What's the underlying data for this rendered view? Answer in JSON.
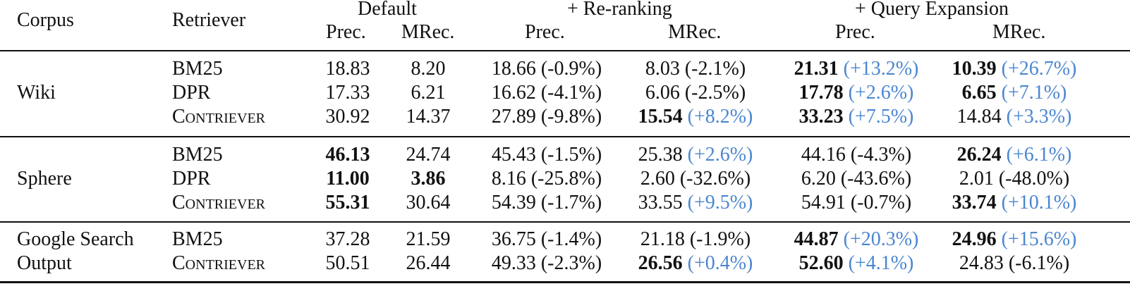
{
  "header": {
    "corpus": "Corpus",
    "retriever": "Retriever",
    "groups": [
      "Default",
      "+ Re-ranking",
      "+ Query Expansion"
    ],
    "metrics": [
      "Prec.",
      "MRec.",
      "Prec.",
      "MRec.",
      "Prec.",
      "MRec."
    ]
  },
  "sections": [
    {
      "corpus_lines": [
        "Wiki"
      ],
      "rows": [
        {
          "retriever": "BM25",
          "sc": false,
          "cells": [
            {
              "v": "18.83",
              "b": false,
              "p": ""
            },
            {
              "v": "8.20",
              "b": false,
              "p": ""
            },
            {
              "v": "18.66",
              "b": false,
              "p": "(-0.9%)",
              "up": false
            },
            {
              "v": "8.03",
              "b": false,
              "p": "(-2.1%)",
              "up": false
            },
            {
              "v": "21.31",
              "b": true,
              "p": "(+13.2%)",
              "up": true
            },
            {
              "v": "10.39",
              "b": true,
              "p": "(+26.7%)",
              "up": true
            }
          ]
        },
        {
          "retriever": "DPR",
          "sc": false,
          "cells": [
            {
              "v": "17.33",
              "b": false,
              "p": ""
            },
            {
              "v": "6.21",
              "b": false,
              "p": ""
            },
            {
              "v": "16.62",
              "b": false,
              "p": "(-4.1%)",
              "up": false
            },
            {
              "v": "6.06",
              "b": false,
              "p": "(-2.5%)",
              "up": false
            },
            {
              "v": "17.78",
              "b": true,
              "p": "(+2.6%)",
              "up": true
            },
            {
              "v": "6.65",
              "b": true,
              "p": "(+7.1%)",
              "up": true
            }
          ]
        },
        {
          "retriever": "Contriever",
          "sc": true,
          "cells": [
            {
              "v": "30.92",
              "b": false,
              "p": ""
            },
            {
              "v": "14.37",
              "b": false,
              "p": ""
            },
            {
              "v": "27.89",
              "b": false,
              "p": "(-9.8%)",
              "up": false
            },
            {
              "v": "15.54",
              "b": true,
              "p": "(+8.2%)",
              "up": true
            },
            {
              "v": "33.23",
              "b": true,
              "p": "(+7.5%)",
              "up": true
            },
            {
              "v": "14.84",
              "b": false,
              "p": "(+3.3%)",
              "up": true
            }
          ]
        }
      ]
    },
    {
      "corpus_lines": [
        "Sphere"
      ],
      "rows": [
        {
          "retriever": "BM25",
          "sc": false,
          "cells": [
            {
              "v": "46.13",
              "b": true,
              "p": ""
            },
            {
              "v": "24.74",
              "b": false,
              "p": ""
            },
            {
              "v": "45.43",
              "b": false,
              "p": "(-1.5%)",
              "up": false
            },
            {
              "v": "25.38",
              "b": false,
              "p": "(+2.6%)",
              "up": true
            },
            {
              "v": "44.16",
              "b": false,
              "p": "(-4.3%)",
              "up": false
            },
            {
              "v": "26.24",
              "b": true,
              "p": "(+6.1%)",
              "up": true
            }
          ]
        },
        {
          "retriever": "DPR",
          "sc": false,
          "cells": [
            {
              "v": "11.00",
              "b": true,
              "p": ""
            },
            {
              "v": "3.86",
              "b": true,
              "p": ""
            },
            {
              "v": "8.16",
              "b": false,
              "p": "(-25.8%)",
              "up": false
            },
            {
              "v": "2.60",
              "b": false,
              "p": "(-32.6%)",
              "up": false
            },
            {
              "v": "6.20",
              "b": false,
              "p": "(-43.6%)",
              "up": false
            },
            {
              "v": "2.01",
              "b": false,
              "p": "(-48.0%)",
              "up": false
            }
          ]
        },
        {
          "retriever": "Contriever",
          "sc": true,
          "cells": [
            {
              "v": "55.31",
              "b": true,
              "p": ""
            },
            {
              "v": "30.64",
              "b": false,
              "p": ""
            },
            {
              "v": "54.39",
              "b": false,
              "p": "(-1.7%)",
              "up": false
            },
            {
              "v": "33.55",
              "b": false,
              "p": "(+9.5%)",
              "up": true
            },
            {
              "v": "54.91",
              "b": false,
              "p": "(-0.7%)",
              "up": false
            },
            {
              "v": "33.74",
              "b": true,
              "p": "(+10.1%)",
              "up": true
            }
          ]
        }
      ]
    },
    {
      "corpus_lines": [
        "Google Search",
        "Output"
      ],
      "rows": [
        {
          "retriever": "BM25",
          "sc": false,
          "cells": [
            {
              "v": "37.28",
              "b": false,
              "p": ""
            },
            {
              "v": "21.59",
              "b": false,
              "p": ""
            },
            {
              "v": "36.75",
              "b": false,
              "p": "(-1.4%)",
              "up": false
            },
            {
              "v": "21.18",
              "b": false,
              "p": "(-1.9%)",
              "up": false
            },
            {
              "v": "44.87",
              "b": true,
              "p": "(+20.3%)",
              "up": true
            },
            {
              "v": "24.96",
              "b": true,
              "p": "(+15.6%)",
              "up": true
            }
          ]
        },
        {
          "retriever": "Contriever",
          "sc": true,
          "cells": [
            {
              "v": "50.51",
              "b": false,
              "p": ""
            },
            {
              "v": "26.44",
              "b": false,
              "p": ""
            },
            {
              "v": "49.33",
              "b": false,
              "p": "(-2.3%)",
              "up": false
            },
            {
              "v": "26.56",
              "b": true,
              "p": "(+0.4%)",
              "up": true
            },
            {
              "v": "52.60",
              "b": true,
              "p": "(+4.1%)",
              "up": true
            },
            {
              "v": "24.83",
              "b": false,
              "p": "(-6.1%)",
              "up": false
            }
          ]
        }
      ]
    }
  ],
  "colors": {
    "increase": "#4a86d1",
    "text": "#111111"
  }
}
